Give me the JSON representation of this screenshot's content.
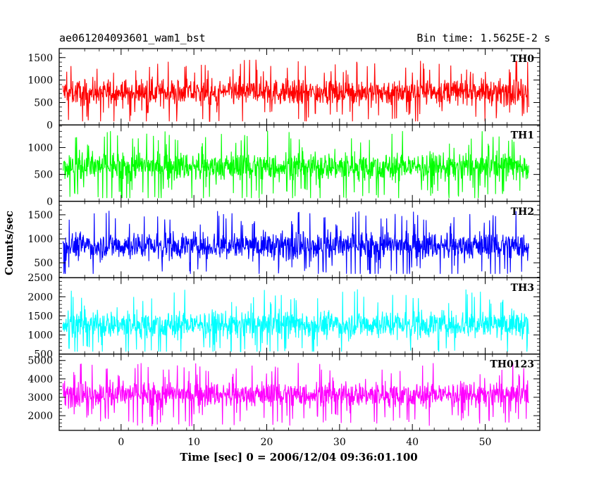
{
  "header": {
    "left_title": "ae061204093601_wam1_bst",
    "right_title": "Bin time: 1.5625E-2 s"
  },
  "chart_data": {
    "type": "line",
    "title": "ae061204093601_wam1_bst",
    "subtitle": "Bin time: 1.5625E-2 s",
    "xlabel": "Time [sec] 0 = 2006/12/04 09:36:01.100",
    "ylabel": "Counts/sec",
    "xlim": [
      -8.5,
      57.5
    ],
    "x_range_data": [
      -8,
      56
    ],
    "bin_time": 0.015625,
    "x_ticks": [
      0,
      10,
      20,
      30,
      40,
      50
    ],
    "grid": false,
    "panels": [
      {
        "name": "TH0",
        "color": "#ff0000",
        "ylim": [
          0,
          1700
        ],
        "y_ticks": [
          0,
          500,
          1000,
          1500
        ],
        "mean": 730,
        "spread": 260,
        "min": 80,
        "max": 1700
      },
      {
        "name": "TH1",
        "color": "#00ff00",
        "ylim": [
          0,
          1420
        ],
        "y_ticks": [
          0,
          500,
          1000
        ],
        "mean": 650,
        "spread": 240,
        "min": 60,
        "max": 1420
      },
      {
        "name": "TH2",
        "color": "#0000ff",
        "ylim": [
          190,
          1780
        ],
        "y_ticks": [
          500,
          1000,
          1500
        ],
        "mean": 860,
        "spread": 260,
        "min": 270,
        "max": 1780
      },
      {
        "name": "TH3",
        "color": "#00ffff",
        "ylim": [
          500,
          2500
        ],
        "y_ticks": [
          500,
          1000,
          1500,
          2000,
          2500
        ],
        "mean": 1280,
        "spread": 330,
        "min": 560,
        "max": 2500
      },
      {
        "name": "TH0123",
        "color": "#ff00ff",
        "ylim": [
          1200,
          5350
        ],
        "y_ticks": [
          2000,
          3000,
          4000,
          5000
        ],
        "mean": 3160,
        "spread": 620,
        "min": 1400,
        "max": 5350
      }
    ]
  }
}
